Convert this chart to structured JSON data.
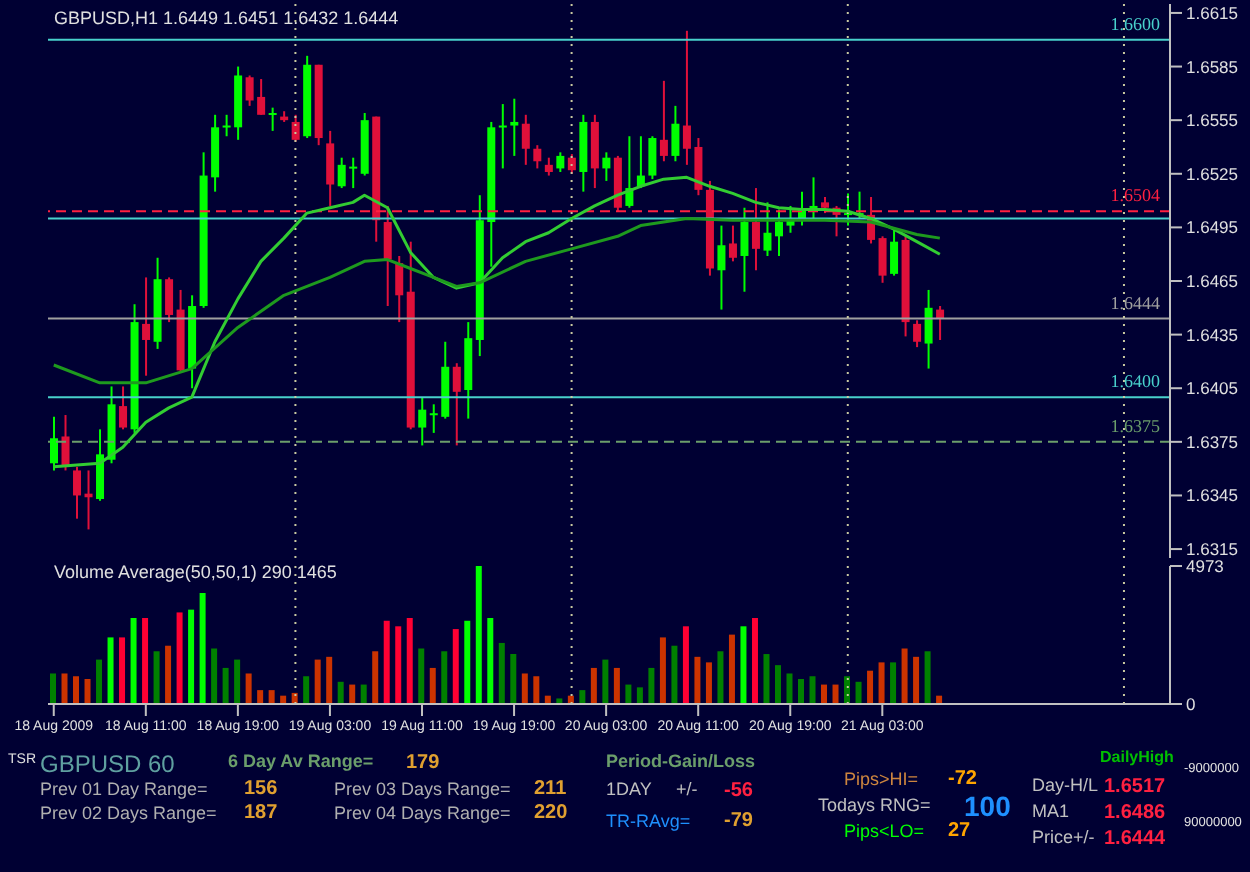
{
  "chart_data": [
    {
      "type": "candlestick",
      "title": "GBPUSD,H1 1.6449 1.6451 1.6432 1.6444",
      "x": [
        "2009-08-18T03:00",
        "2009-08-18T04:00",
        "2009-08-18T05:00",
        "2009-08-18T06:00",
        "2009-08-18T07:00",
        "2009-08-18T08:00",
        "2009-08-18T09:00",
        "2009-08-18T10:00",
        "2009-08-18T11:00",
        "2009-08-18T12:00",
        "2009-08-18T13:00",
        "2009-08-18T14:00",
        "2009-08-18T15:00",
        "2009-08-18T16:00",
        "2009-08-18T17:00",
        "2009-08-18T18:00",
        "2009-08-18T19:00",
        "2009-08-18T20:00",
        "2009-08-18T21:00",
        "2009-08-18T22:00",
        "2009-08-18T23:00",
        "2009-08-19T00:00",
        "2009-08-19T01:00",
        "2009-08-19T02:00",
        "2009-08-19T03:00",
        "2009-08-19T04:00",
        "2009-08-19T05:00",
        "2009-08-19T06:00",
        "2009-08-19T07:00",
        "2009-08-19T08:00",
        "2009-08-19T09:00",
        "2009-08-19T10:00",
        "2009-08-19T11:00",
        "2009-08-19T12:00",
        "2009-08-19T13:00",
        "2009-08-19T14:00",
        "2009-08-19T15:00",
        "2009-08-19T16:00",
        "2009-08-19T17:00",
        "2009-08-19T18:00",
        "2009-08-19T19:00",
        "2009-08-19T20:00",
        "2009-08-19T21:00",
        "2009-08-19T22:00",
        "2009-08-19T23:00",
        "2009-08-20T00:00",
        "2009-08-20T01:00",
        "2009-08-20T02:00",
        "2009-08-20T03:00",
        "2009-08-20T04:00",
        "2009-08-20T05:00",
        "2009-08-20T06:00",
        "2009-08-20T07:00",
        "2009-08-20T08:00",
        "2009-08-20T09:00",
        "2009-08-20T10:00",
        "2009-08-20T11:00",
        "2009-08-20T12:00",
        "2009-08-20T13:00",
        "2009-08-20T14:00",
        "2009-08-20T15:00",
        "2009-08-20T16:00",
        "2009-08-20T17:00",
        "2009-08-20T18:00",
        "2009-08-20T19:00",
        "2009-08-20T20:00",
        "2009-08-20T21:00",
        "2009-08-20T22:00",
        "2009-08-20T23:00",
        "2009-08-21T00:00",
        "2009-08-21T01:00",
        "2009-08-21T02:00",
        "2009-08-21T03:00",
        "2009-08-21T04:00",
        "2009-08-21T05:00",
        "2009-08-21T06:00",
        "2009-08-21T07:00",
        "2009-08-21T08:00"
      ],
      "ohlc": [
        [
          1.6363,
          1.6389,
          1.6359,
          1.6377
        ],
        [
          1.6378,
          1.639,
          1.6359,
          1.6362
        ],
        [
          1.6359,
          1.6361,
          1.6332,
          1.6345
        ],
        [
          1.6346,
          1.6359,
          1.6326,
          1.6344
        ],
        [
          1.6343,
          1.6382,
          1.6342,
          1.6368
        ],
        [
          1.6365,
          1.6406,
          1.6363,
          1.6396
        ],
        [
          1.6395,
          1.6406,
          1.6382,
          1.6383
        ],
        [
          1.6382,
          1.6452,
          1.638,
          1.6442
        ],
        [
          1.6441,
          1.6467,
          1.6412,
          1.6432
        ],
        [
          1.6431,
          1.6478,
          1.6427,
          1.6466
        ],
        [
          1.6466,
          1.6467,
          1.6442,
          1.6446
        ],
        [
          1.6449,
          1.646,
          1.6414,
          1.6415
        ],
        [
          1.6416,
          1.6457,
          1.6405,
          1.6451
        ],
        [
          1.6451,
          1.6537,
          1.645,
          1.6524
        ],
        [
          1.6523,
          1.6558,
          1.6515,
          1.6551
        ],
        [
          1.6551,
          1.6558,
          1.6546,
          1.6552
        ],
        [
          1.6551,
          1.6585,
          1.6544,
          1.658
        ],
        [
          1.6579,
          1.658,
          1.6563,
          1.6566
        ],
        [
          1.6568,
          1.6578,
          1.6558,
          1.6558
        ],
        [
          1.6558,
          1.6562,
          1.6549,
          1.6559
        ],
        [
          1.6557,
          1.656,
          1.6554,
          1.6555
        ],
        [
          1.6554,
          1.6558,
          1.6543,
          1.6544
        ],
        [
          1.6546,
          1.6591,
          1.6545,
          1.6586
        ],
        [
          1.6586,
          1.6586,
          1.6541,
          1.6545
        ],
        [
          1.6542,
          1.6549,
          1.6507,
          1.6519
        ],
        [
          1.6518,
          1.6534,
          1.6517,
          1.653
        ],
        [
          1.6528,
          1.6534,
          1.6517,
          1.6529
        ],
        [
          1.6525,
          1.6559,
          1.6524,
          1.6555
        ],
        [
          1.6557,
          1.6557,
          1.6487,
          1.6499
        ],
        [
          1.6498,
          1.6507,
          1.6451,
          1.6477
        ],
        [
          1.6475,
          1.6479,
          1.6442,
          1.6457
        ],
        [
          1.6459,
          1.6487,
          1.6382,
          1.6383
        ],
        [
          1.6383,
          1.64,
          1.6373,
          1.6393
        ],
        [
          1.639,
          1.6396,
          1.638,
          1.6391
        ],
        [
          1.6389,
          1.6431,
          1.6388,
          1.6417
        ],
        [
          1.6417,
          1.6419,
          1.6373,
          1.6403
        ],
        [
          1.6404,
          1.6442,
          1.6388,
          1.6433
        ],
        [
          1.6432,
          1.6513,
          1.6423,
          1.6499
        ],
        [
          1.6498,
          1.6554,
          1.6473,
          1.6551
        ],
        [
          1.6551,
          1.6564,
          1.6528,
          1.6552
        ],
        [
          1.6552,
          1.6567,
          1.6535,
          1.6554
        ],
        [
          1.6553,
          1.6558,
          1.653,
          1.6539
        ],
        [
          1.6539,
          1.6541,
          1.6528,
          1.6532
        ],
        [
          1.653,
          1.6534,
          1.6524,
          1.6526
        ],
        [
          1.6528,
          1.6537,
          1.6526,
          1.6535
        ],
        [
          1.6534,
          1.6536,
          1.6525,
          1.6527
        ],
        [
          1.6526,
          1.6558,
          1.6515,
          1.6554
        ],
        [
          1.6554,
          1.6558,
          1.6517,
          1.6528
        ],
        [
          1.6528,
          1.6537,
          1.6521,
          1.6534
        ],
        [
          1.6534,
          1.6535,
          1.6504,
          1.6506
        ],
        [
          1.6507,
          1.6546,
          1.6506,
          1.6517
        ],
        [
          1.6518,
          1.6546,
          1.6517,
          1.6524
        ],
        [
          1.6524,
          1.6546,
          1.6522,
          1.6545
        ],
        [
          1.6544,
          1.6577,
          1.6532,
          1.6535
        ],
        [
          1.6535,
          1.6563,
          1.6532,
          1.6553
        ],
        [
          1.6552,
          1.6605,
          1.653,
          1.6539
        ],
        [
          1.654,
          1.6545,
          1.6513,
          1.6516
        ],
        [
          1.6516,
          1.6521,
          1.6468,
          1.6472
        ],
        [
          1.6471,
          1.6496,
          1.6449,
          1.6485
        ],
        [
          1.6486,
          1.6496,
          1.6476,
          1.6478
        ],
        [
          1.6479,
          1.6506,
          1.6459,
          1.6498
        ],
        [
          1.6498,
          1.6517,
          1.6471,
          1.6483
        ],
        [
          1.6482,
          1.6509,
          1.6479,
          1.6492
        ],
        [
          1.649,
          1.6505,
          1.6479,
          1.6498
        ],
        [
          1.6496,
          1.6507,
          1.6492,
          1.6499
        ],
        [
          1.6499,
          1.6515,
          1.6496,
          1.6505
        ],
        [
          1.6504,
          1.6523,
          1.65,
          1.6507
        ],
        [
          1.6509,
          1.6512,
          1.6503,
          1.6506
        ],
        [
          1.6506,
          1.6507,
          1.649,
          1.6502
        ],
        [
          1.6502,
          1.6514,
          1.6496,
          1.6503
        ],
        [
          1.6502,
          1.6515,
          1.65,
          1.6503
        ],
        [
          1.6502,
          1.6512,
          1.6486,
          1.6488
        ],
        [
          1.6489,
          1.649,
          1.6464,
          1.6468
        ],
        [
          1.6469,
          1.6495,
          1.6468,
          1.6487
        ],
        [
          1.6488,
          1.649,
          1.6434,
          1.6442
        ],
        [
          1.6441,
          1.6443,
          1.6428,
          1.6431
        ],
        [
          1.643,
          1.646,
          1.6416,
          1.645
        ],
        [
          1.6449,
          1.6451,
          1.6432,
          1.6444
        ]
      ],
      "colors": [
        "#00ff00",
        "#e0103a",
        "#e0103a",
        "#e0103a",
        "#00ff00",
        "#00ff00",
        "#e0103a",
        "#00ff00",
        "#e0103a",
        "#00ff00",
        "#e0103a",
        "#e0103a",
        "#00ff00",
        "#00ff00",
        "#00ff00",
        "#00ff00",
        "#00ff00",
        "#e0103a",
        "#e0103a",
        "#00ff00",
        "#e0103a",
        "#e0103a",
        "#00ff00",
        "#e0103a",
        "#e0103a",
        "#00ff00",
        "#00ff00",
        "#00ff00",
        "#e0103a",
        "#e0103a",
        "#e0103a",
        "#e0103a",
        "#00ff00",
        "#00ff00",
        "#00ff00",
        "#e0103a",
        "#00ff00",
        "#00ff00",
        "#00ff00",
        "#00ff00",
        "#00ff00",
        "#e0103a",
        "#e0103a",
        "#e0103a",
        "#00ff00",
        "#e0103a",
        "#00ff00",
        "#e0103a",
        "#00ff00",
        "#e0103a",
        "#00ff00",
        "#00ff00",
        "#00ff00",
        "#e0103a",
        "#00ff00",
        "#e0103a",
        "#e0103a",
        "#e0103a",
        "#00ff00",
        "#e0103a",
        "#00ff00",
        "#e0103a",
        "#00ff00",
        "#00ff00",
        "#00ff00",
        "#00ff00",
        "#00ff00",
        "#e0103a",
        "#e0103a",
        "#00ff00",
        "#00ff00",
        "#e0103a",
        "#e0103a",
        "#00ff00",
        "#e0103a",
        "#e0103a",
        "#00ff00",
        "#e0103a"
      ],
      "series": [
        {
          "type": "line",
          "color": "#32cd32",
          "x": [
            "2009-08-18T03:00",
            "2009-08-18T07:00",
            "2009-08-18T09:00",
            "2009-08-18T11:00",
            "2009-08-18T13:00",
            "2009-08-18T15:00",
            "2009-08-18T17:00",
            "2009-08-18T19:00",
            "2009-08-18T21:00",
            "2009-08-18T23:00",
            "2009-08-19T01:00",
            "2009-08-19T03:00",
            "2009-08-19T05:00",
            "2009-08-19T06:00",
            "2009-08-19T08:00",
            "2009-08-19T10:00",
            "2009-08-19T12:00",
            "2009-08-19T14:00",
            "2009-08-19T16:00",
            "2009-08-19T18:00",
            "2009-08-19T20:00",
            "2009-08-19T22:00",
            "2009-08-20T00:00",
            "2009-08-20T02:00",
            "2009-08-20T04:00",
            "2009-08-20T06:00",
            "2009-08-20T08:00",
            "2009-08-20T10:00",
            "2009-08-20T12:00",
            "2009-08-20T14:00",
            "2009-08-20T16:00",
            "2009-08-20T18:00",
            "2009-08-20T20:00",
            "2009-08-20T22:00",
            "2009-08-21T00:00",
            "2009-08-21T02:00",
            "2009-08-21T04:00",
            "2009-08-21T06:00",
            "2009-08-21T08:00"
          ],
          "values": [
            1.6361,
            1.6363,
            1.6372,
            1.6386,
            1.6394,
            1.64,
            1.6431,
            1.6455,
            1.6476,
            1.6489,
            1.6503,
            1.6506,
            1.6509,
            1.6513,
            1.6506,
            1.6481,
            1.6467,
            1.6461,
            1.6464,
            1.6478,
            1.6487,
            1.6492,
            1.65,
            1.6507,
            1.6513,
            1.6518,
            1.6522,
            1.6523,
            1.6518,
            1.6514,
            1.6509,
            1.6506,
            1.6505,
            1.6505,
            1.6504,
            1.65,
            1.6494,
            1.6487,
            1.648
          ]
        },
        {
          "type": "line",
          "color": "#1e9a1e",
          "x": [
            "2009-08-18T03:00",
            "2009-08-18T07:00",
            "2009-08-18T11:00",
            "2009-08-18T15:00",
            "2009-08-18T19:00",
            "2009-08-18T23:00",
            "2009-08-19T03:00",
            "2009-08-19T06:00",
            "2009-08-19T08:00",
            "2009-08-19T10:00",
            "2009-08-19T12:00",
            "2009-08-19T14:00",
            "2009-08-19T16:00",
            "2009-08-19T20:00",
            "2009-08-20T00:00",
            "2009-08-20T04:00",
            "2009-08-20T06:00",
            "2009-08-20T10:00",
            "2009-08-20T14:00",
            "2009-08-20T18:00",
            "2009-08-20T22:00",
            "2009-08-21T02:00",
            "2009-08-21T06:00",
            "2009-08-21T08:00"
          ],
          "values": [
            1.6418,
            1.6408,
            1.6408,
            1.6416,
            1.6439,
            1.6457,
            1.6467,
            1.6476,
            1.6477,
            1.6472,
            1.6467,
            1.6462,
            1.6464,
            1.6476,
            1.6483,
            1.649,
            1.6496,
            1.65,
            1.6499,
            1.6499,
            1.6499,
            1.6498,
            1.6491,
            1.6489
          ]
        }
      ],
      "xlim": [
        "2009-08-18T02:30",
        "2009-08-22T04:00"
      ],
      "ylim": [
        1.631,
        1.662
      ],
      "yticks": [
        1.6315,
        1.6345,
        1.6375,
        1.6405,
        1.6435,
        1.6465,
        1.6495,
        1.6525,
        1.6555,
        1.6585,
        1.6615
      ],
      "tick_labels": "y",
      "ref_lines": [
        {
          "axis": "y",
          "value": 1.66,
          "label": "1.6600",
          "color": "#48d1cc"
        },
        {
          "axis": "y",
          "value": 1.6504,
          "label": "1.6504",
          "color": "#ff2040",
          "line_style": "dashed"
        },
        {
          "axis": "y",
          "value": 1.65,
          "color": "#48d1cc"
        },
        {
          "axis": "y",
          "value": 1.6444,
          "label": "1.6444",
          "color": "#a0a0a0"
        },
        {
          "axis": "y",
          "value": 1.64,
          "label": "1.6400",
          "color": "#48d1cc"
        },
        {
          "axis": "y",
          "value": 1.6375,
          "label": "1.6375",
          "color": "#6b9e6b",
          "line_style": "dashed"
        },
        {
          "axis": "x",
          "value": "2009-08-19T00:00",
          "color": "#c8c8a0",
          "line_style": "dotted"
        },
        {
          "axis": "x",
          "value": "2009-08-20T00:00",
          "color": "#c8c8a0",
          "line_style": "dotted"
        },
        {
          "axis": "x",
          "value": "2009-08-21T00:00",
          "color": "#c8c8a0",
          "line_style": "dotted"
        },
        {
          "axis": "x",
          "value": "2009-08-22T00:00",
          "color": "#c8c8a0",
          "line_style": "dotted"
        }
      ]
    },
    {
      "type": "bar",
      "title": "Volume Average(50,50,1) 290 1465",
      "x": [
        "2009-08-18T03:00",
        "2009-08-18T04:00",
        "2009-08-18T05:00",
        "2009-08-18T06:00",
        "2009-08-18T07:00",
        "2009-08-18T08:00",
        "2009-08-18T09:00",
        "2009-08-18T10:00",
        "2009-08-18T11:00",
        "2009-08-18T12:00",
        "2009-08-18T13:00",
        "2009-08-18T14:00",
        "2009-08-18T15:00",
        "2009-08-18T16:00",
        "2009-08-18T17:00",
        "2009-08-18T18:00",
        "2009-08-18T19:00",
        "2009-08-18T20:00",
        "2009-08-18T21:00",
        "2009-08-18T22:00",
        "2009-08-18T23:00",
        "2009-08-19T00:00",
        "2009-08-19T01:00",
        "2009-08-19T02:00",
        "2009-08-19T03:00",
        "2009-08-19T04:00",
        "2009-08-19T05:00",
        "2009-08-19T06:00",
        "2009-08-19T07:00",
        "2009-08-19T08:00",
        "2009-08-19T09:00",
        "2009-08-19T10:00",
        "2009-08-19T11:00",
        "2009-08-19T12:00",
        "2009-08-19T13:00",
        "2009-08-19T14:00",
        "2009-08-19T15:00",
        "2009-08-19T16:00",
        "2009-08-19T17:00",
        "2009-08-19T18:00",
        "2009-08-19T19:00",
        "2009-08-19T20:00",
        "2009-08-19T21:00",
        "2009-08-19T22:00",
        "2009-08-19T23:00",
        "2009-08-20T00:00",
        "2009-08-20T01:00",
        "2009-08-20T02:00",
        "2009-08-20T03:00",
        "2009-08-20T04:00",
        "2009-08-20T05:00",
        "2009-08-20T06:00",
        "2009-08-20T07:00",
        "2009-08-20T08:00",
        "2009-08-20T09:00",
        "2009-08-20T10:00",
        "2009-08-20T11:00",
        "2009-08-20T12:00",
        "2009-08-20T13:00",
        "2009-08-20T14:00",
        "2009-08-20T15:00",
        "2009-08-20T16:00",
        "2009-08-20T17:00",
        "2009-08-20T18:00",
        "2009-08-20T19:00",
        "2009-08-20T20:00",
        "2009-08-20T21:00",
        "2009-08-20T22:00",
        "2009-08-20T23:00",
        "2009-08-21T00:00",
        "2009-08-21T01:00",
        "2009-08-21T02:00",
        "2009-08-21T03:00",
        "2009-08-21T04:00",
        "2009-08-21T05:00",
        "2009-08-21T06:00",
        "2009-08-21T07:00",
        "2009-08-21T08:00"
      ],
      "values": [
        1100,
        1100,
        1000,
        900,
        1600,
        2400,
        2400,
        3100,
        3100,
        1900,
        2100,
        3300,
        3400,
        4000,
        2000,
        1300,
        1600,
        1100,
        500,
        500,
        300,
        400,
        1000,
        1600,
        1700,
        800,
        700,
        700,
        1900,
        3000,
        2800,
        3100,
        2000,
        1300,
        1900,
        2700,
        3000,
        4973,
        3100,
        2200,
        1800,
        1100,
        1000,
        300,
        200,
        300,
        500,
        1300,
        1600,
        1300,
        700,
        600,
        1300,
        2400,
        2100,
        2800,
        1700,
        1500,
        1900,
        2500,
        2800,
        3100,
        1800,
        1400,
        1100,
        900,
        1000,
        700,
        700,
        1000,
        800,
        1200,
        1500,
        1500,
        2000,
        1700,
        1900,
        300
      ],
      "colors": [
        "#008000",
        "#cc3300",
        "#cc3300",
        "#cc3300",
        "#008000",
        "#00ff00",
        "#ff0033",
        "#00ff00",
        "#ff0033",
        "#008000",
        "#cc3300",
        "#ff0033",
        "#00ff00",
        "#00ff00",
        "#008000",
        "#008000",
        "#008000",
        "#cc3300",
        "#cc3300",
        "#cc3300",
        "#cc3300",
        "#cc3300",
        "#008000",
        "#cc3300",
        "#cc3300",
        "#008000",
        "#cc3300",
        "#008000",
        "#cc3300",
        "#ff0033",
        "#ff0033",
        "#ff0033",
        "#008000",
        "#cc3300",
        "#008000",
        "#ff0033",
        "#00ff00",
        "#00ff00",
        "#00ff00",
        "#008000",
        "#008000",
        "#cc3300",
        "#cc3300",
        "#cc3300",
        "#008000",
        "#cc3300",
        "#008000",
        "#cc3300",
        "#008000",
        "#cc3300",
        "#008000",
        "#008000",
        "#008000",
        "#cc3300",
        "#008000",
        "#ff0033",
        "#cc3300",
        "#cc3300",
        "#008000",
        "#cc3300",
        "#00ff00",
        "#ff0033",
        "#008000",
        "#008000",
        "#008000",
        "#008000",
        "#008000",
        "#cc3300",
        "#cc3300",
        "#008000",
        "#008000",
        "#cc3300",
        "#cc3300",
        "#008000",
        "#cc3300",
        "#cc3300",
        "#008000",
        "#cc3300"
      ],
      "xlim": [
        "2009-08-18T02:30",
        "2009-08-22T04:00"
      ],
      "xticks": [
        {
          "value": "2009-08-18T03:00",
          "label": "18 Aug 2009"
        },
        {
          "value": "2009-08-18T11:00",
          "label": "18 Aug 11:00"
        },
        {
          "value": "2009-08-18T19:00",
          "label": "18 Aug 19:00"
        },
        {
          "value": "2009-08-19T03:00",
          "label": "19 Aug 03:00"
        },
        {
          "value": "2009-08-19T11:00",
          "label": "19 Aug 11:00"
        },
        {
          "value": "2009-08-19T19:00",
          "label": "19 Aug 19:00"
        },
        {
          "value": "2009-08-20T03:00",
          "label": "20 Aug 03:00"
        },
        {
          "value": "2009-08-20T11:00",
          "label": "20 Aug 11:00"
        },
        {
          "value": "2009-08-20T19:00",
          "label": "20 Aug 19:00"
        },
        {
          "value": "2009-08-21T03:00",
          "label": "21 Aug 03:00"
        }
      ],
      "ylim": [
        0,
        4973
      ],
      "yticks": [
        0,
        4973
      ],
      "ref_lines": [
        {
          "axis": "x",
          "value": "2009-08-19T00:00",
          "color": "#c8c8a0",
          "line_style": "dotted"
        },
        {
          "axis": "x",
          "value": "2009-08-20T00:00",
          "color": "#c8c8a0",
          "line_style": "dotted"
        },
        {
          "axis": "x",
          "value": "2009-08-21T00:00",
          "color": "#c8c8a0",
          "line_style": "dotted"
        },
        {
          "axis": "x",
          "value": "2009-08-22T00:00",
          "color": "#c8c8a0",
          "line_style": "dotted"
        }
      ]
    },
    {
      "type": "other",
      "annotations": [
        "TSR",
        "GBPUSD 60",
        "6 Day Av Range=",
        "179",
        "Prev 01 Day Range=",
        "156",
        "Prev 02 Days Range=",
        "187",
        "Prev 03 Days Range=",
        "211",
        "Prev 04 Days Range=",
        "220",
        "Period-Gain/Loss",
        "1DAY",
        "+/-",
        "-56",
        "TR-RAvg=",
        "-79",
        "Pips>HI=",
        "-72",
        "Todays RNG=",
        "100",
        "Pips<LO=",
        "27",
        "Day-H/L",
        "1.6517",
        "MA1",
        "1.6486",
        "Price+/-",
        "1.6444",
        "DailyHigh",
        "-9000000",
        "90000000"
      ]
    }
  ]
}
